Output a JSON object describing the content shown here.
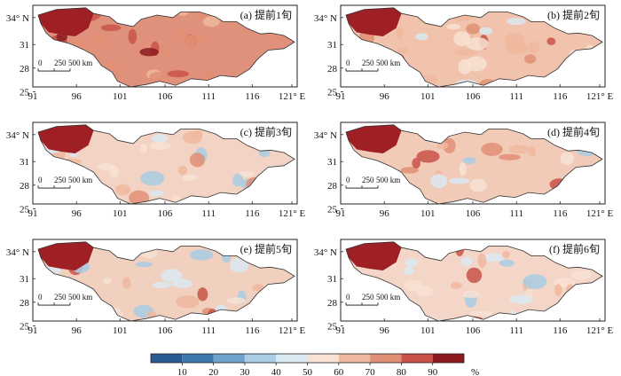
{
  "panels": [
    {
      "label": "(a) 提前1旬",
      "fill": "#e0917b"
    },
    {
      "label": "(b) 提前2旬",
      "fill": "#f1c3ad"
    },
    {
      "label": "(c) 提前3旬",
      "fill": "#f3d3c4"
    },
    {
      "label": "(d) 提前4旬",
      "fill": "#f1cbb8"
    },
    {
      "label": "(e) 提前5旬",
      "fill": "#f1d0bf"
    },
    {
      "label": "(f) 提前6旬",
      "fill": "#f3d6c7"
    }
  ],
  "axes": {
    "x_ticks": [
      "91",
      "96",
      "101",
      "106",
      "111",
      "116",
      "121° E"
    ],
    "y_ticks": [
      "34° N",
      "31",
      "28",
      "25"
    ]
  },
  "scale_bar": {
    "labels": [
      "0",
      "250",
      "500 km"
    ]
  },
  "colorbar": {
    "unit": "%",
    "labels": [
      "10",
      "20",
      "30",
      "40",
      "50",
      "60",
      "70",
      "80",
      "90"
    ],
    "colors": [
      "#2b5b93",
      "#3d77ae",
      "#6ea1cc",
      "#a9cde3",
      "#dbe9f2",
      "#f7e2d4",
      "#efb89e",
      "#e08f74",
      "#c95348",
      "#8c1a1f"
    ]
  },
  "colors": {
    "tibet": "#9e1f24",
    "outline": "#333333"
  }
}
